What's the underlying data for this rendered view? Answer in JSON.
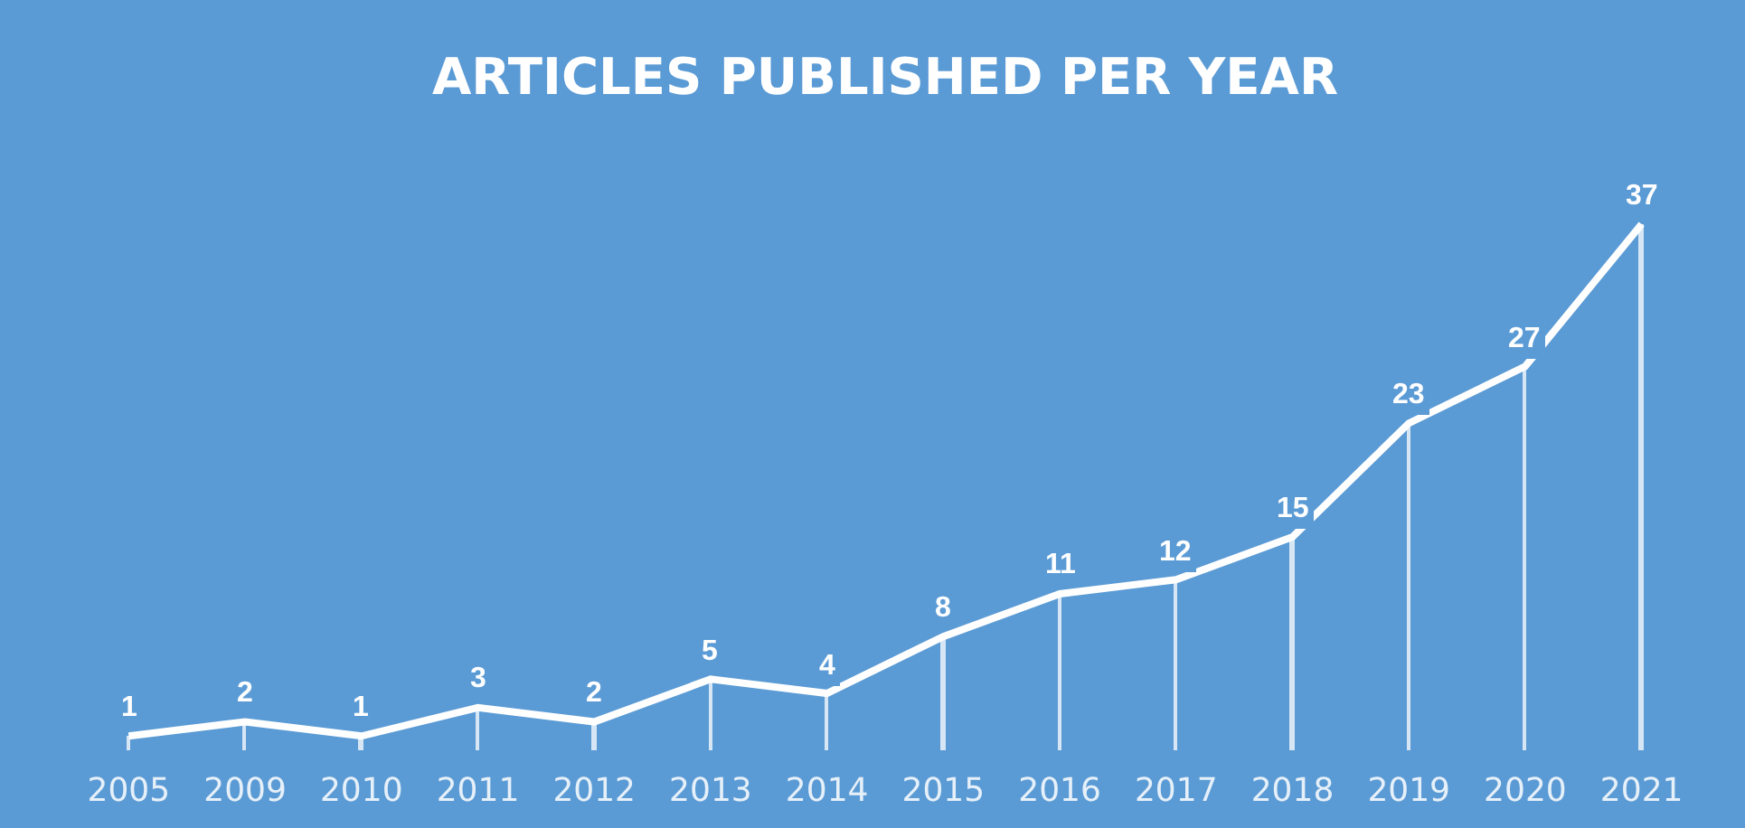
{
  "chart_data": {
    "type": "line",
    "title": "ARTICLES PUBLISHED PER YEAR",
    "categories": [
      "2005",
      "2009",
      "2010",
      "2011",
      "2012",
      "2013",
      "2014",
      "2015",
      "2016",
      "2017",
      "2018",
      "2019",
      "2020",
      "2021"
    ],
    "series": [
      {
        "color": "#ffffff",
        "values": [
          1,
          2,
          1,
          3,
          2,
          5,
          4,
          8,
          11,
          12,
          15,
          23,
          27,
          37
        ],
        "value_labels": [
          "1",
          "2",
          "1",
          "3",
          "2",
          "5",
          "4",
          "8",
          "11",
          "12",
          "15",
          "23",
          "27",
          "37"
        ]
      },
      {
        "type": "bar",
        "color": "#ffffff",
        "values": [
          1,
          2,
          1,
          3,
          2,
          5,
          4,
          8,
          11,
          12,
          15,
          23,
          27,
          37
        ]
      }
    ],
    "tick_labels": "x",
    "marker": "none",
    "line_style": "solid"
  }
}
